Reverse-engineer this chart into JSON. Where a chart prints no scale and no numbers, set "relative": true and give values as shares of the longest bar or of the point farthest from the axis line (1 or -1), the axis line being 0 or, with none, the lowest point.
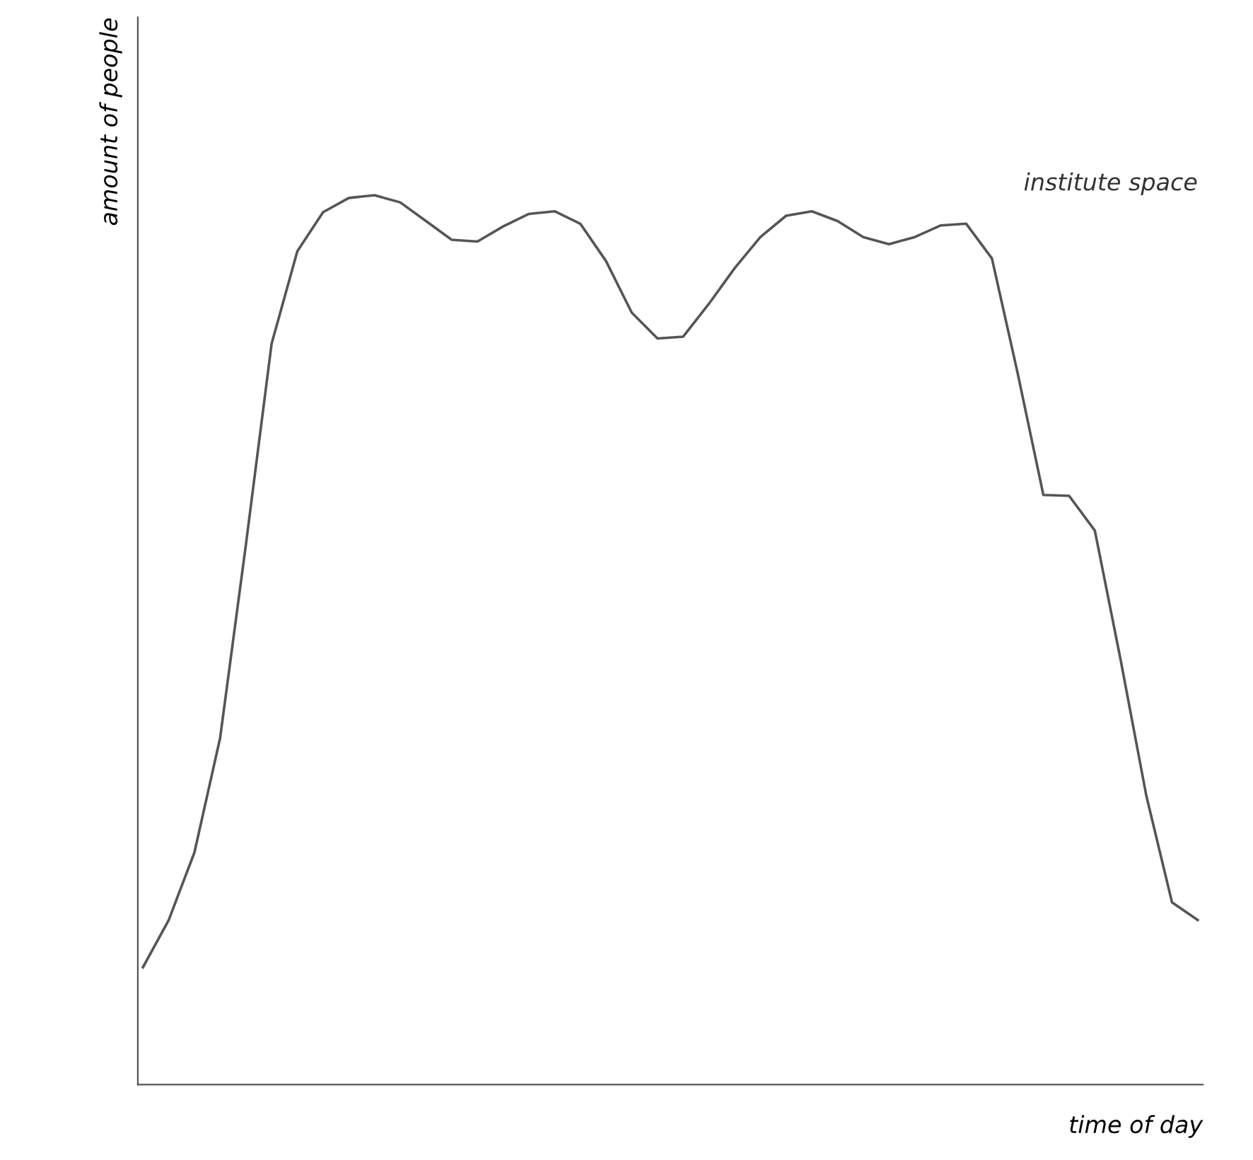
{
  "chart_data": {
    "type": "line",
    "relative": true,
    "xlabel": "time of day",
    "ylabel": "amount of people",
    "categories": [
      null,
      null,
      null,
      null,
      null,
      null,
      null,
      null,
      null,
      null,
      null,
      null,
      null,
      null,
      null,
      null,
      null,
      null,
      null,
      null,
      null,
      null,
      null,
      null,
      null,
      null,
      null,
      null,
      null,
      null,
      null,
      null,
      null,
      null,
      null,
      null,
      null,
      null,
      null,
      null,
      null,
      null
    ],
    "series": [
      {
        "name": "institute space",
        "color": "#555555",
        "values": [
          0.132,
          0.185,
          0.261,
          0.39,
          0.607,
          0.833,
          0.937,
          0.981,
          0.997,
          1.0,
          0.992,
          0.971,
          0.95,
          0.948,
          0.965,
          0.979,
          0.982,
          0.968,
          0.926,
          0.868,
          0.839,
          0.841,
          0.878,
          0.918,
          0.953,
          0.977,
          0.982,
          0.971,
          0.953,
          0.945,
          0.953,
          0.966,
          0.968,
          0.929,
          0.8,
          0.663,
          0.662,
          0.623,
          0.478,
          0.325,
          0.205,
          0.185
        ]
      }
    ],
    "grid": false,
    "legend": false
  }
}
